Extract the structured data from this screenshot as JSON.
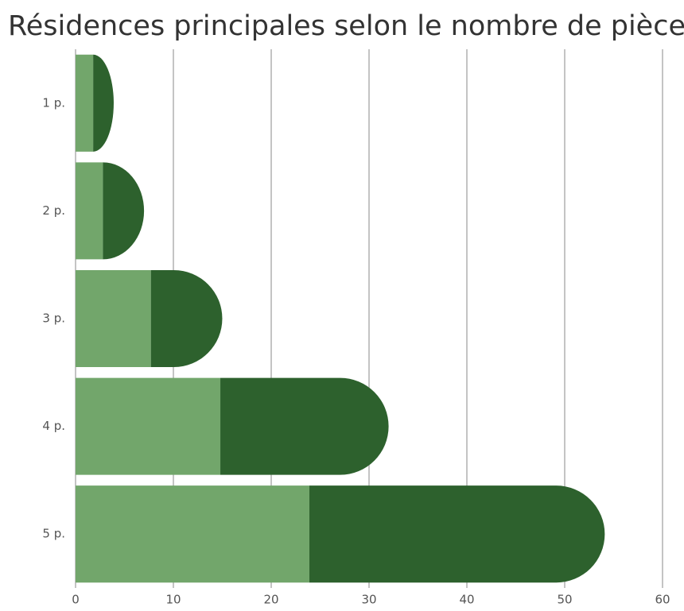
{
  "chart_data": {
    "type": "stacked-bar-horizontal",
    "title": "Résidences principales selon le nombre de pièces",
    "categories": [
      "1 p.",
      "2 p.",
      "3 p.",
      "4 p.",
      "5 p."
    ],
    "series": [
      {
        "color": "#72a66b",
        "values": [
          1.8,
          2.8,
          7.7,
          14.8,
          23.9
        ]
      },
      {
        "color": "#2d612d",
        "values": [
          2.1,
          4.2,
          7.3,
          17.2,
          30.2
        ]
      }
    ],
    "xlim": [
      0,
      60
    ],
    "xticks": [
      0,
      10,
      20,
      30,
      40,
      50,
      60
    ],
    "grid": true
  }
}
